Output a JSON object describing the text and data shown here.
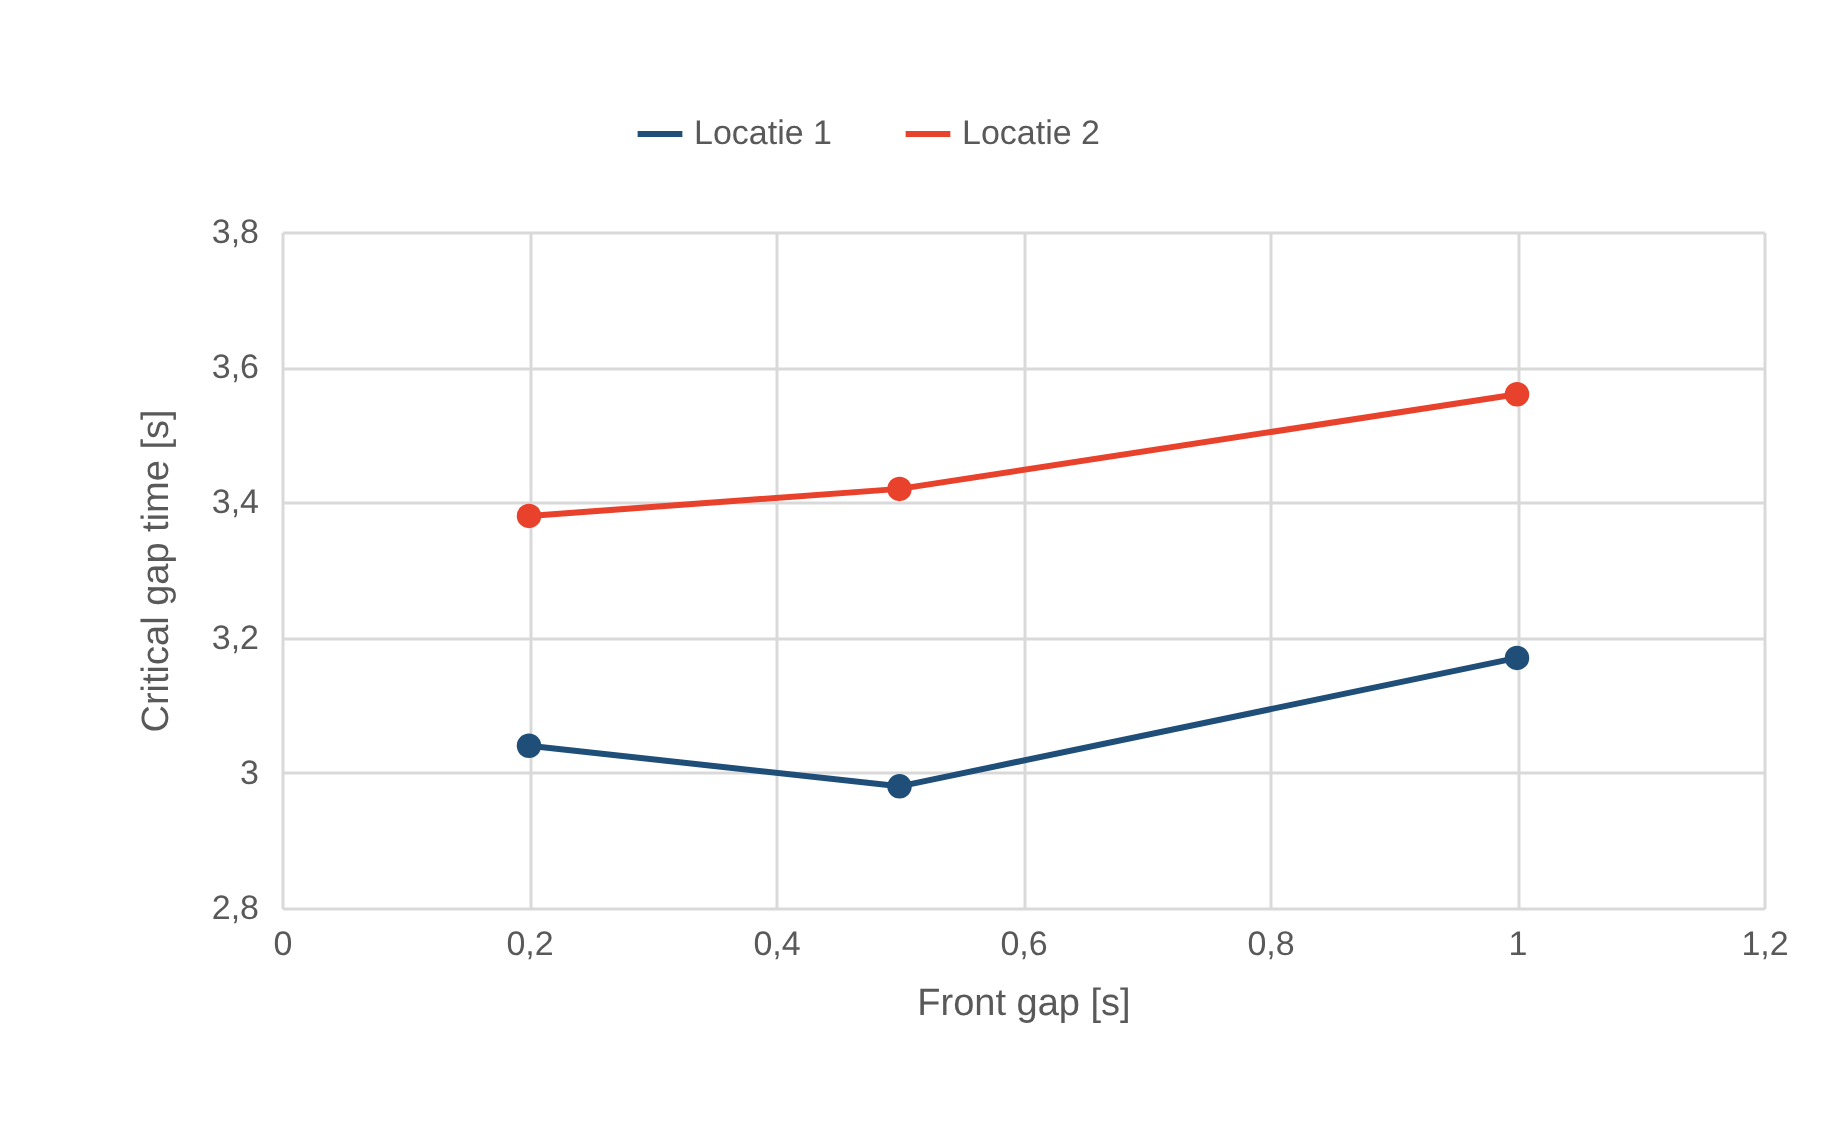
{
  "chart_data": {
    "type": "line",
    "xlabel": "Front gap [s]",
    "ylabel": "Critical gap time [s]",
    "x": [
      0.2,
      0.5,
      1
    ],
    "series": [
      {
        "name": "Locatie 1",
        "color": "#1f4e79",
        "values": [
          3.04,
          2.98,
          3.17
        ]
      },
      {
        "name": "Locatie 2",
        "color": "#e8412c",
        "values": [
          3.38,
          3.42,
          3.56
        ]
      }
    ],
    "xlim": [
      0,
      1.2
    ],
    "xticks": [
      0,
      {
        "value": 0.2,
        "label": "0,2"
      },
      {
        "value": 0.4,
        "label": "0,4"
      },
      {
        "value": 0.6,
        "label": "0,6"
      },
      {
        "value": 0.8,
        "label": "0,8"
      },
      1,
      {
        "value": 1.2,
        "label": "1,2"
      }
    ],
    "ylim": [
      2.8,
      3.8
    ],
    "yticks": [
      {
        "value": 2.8,
        "label": "2,8"
      },
      3,
      {
        "value": 3.2,
        "label": "3,2"
      },
      {
        "value": 3.4,
        "label": "3,4"
      },
      {
        "value": 3.6,
        "label": "3,6"
      },
      {
        "value": 3.8,
        "label": "3,8"
      }
    ],
    "grid": true,
    "legend": "top",
    "marker": "circle",
    "line_style": "solid"
  }
}
